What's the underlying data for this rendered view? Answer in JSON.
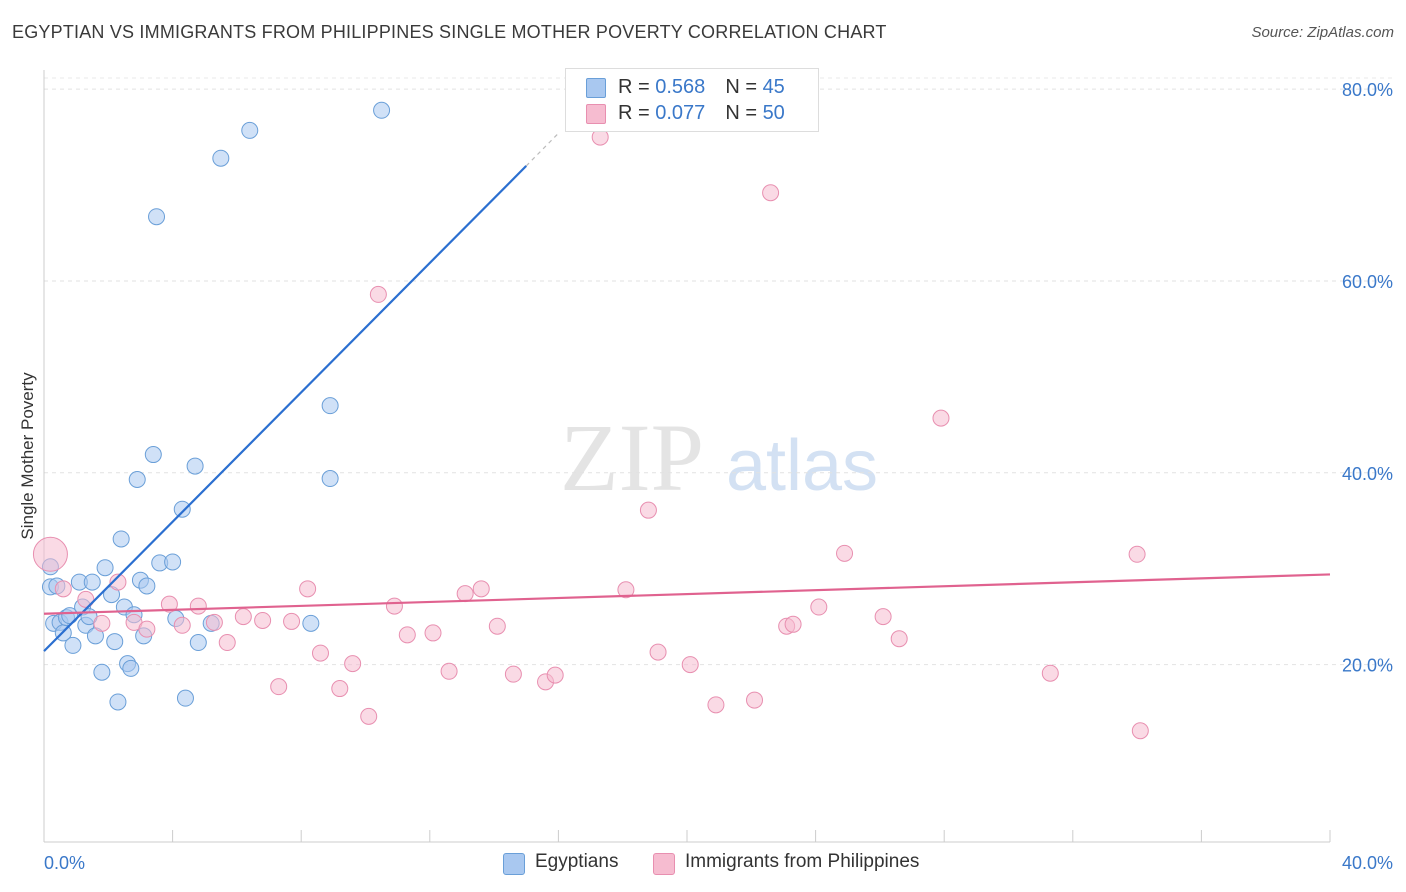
{
  "title": "EGYPTIAN VS IMMIGRANTS FROM PHILIPPINES SINGLE MOTHER POVERTY CORRELATION CHART",
  "source": "Source: ZipAtlas.com",
  "watermark": {
    "zip": "ZIP",
    "atlas": "atlas"
  },
  "legend_top": [
    {
      "r_label": "R = ",
      "r_value": "0.568",
      "n_label": "N = ",
      "n_value": "45",
      "color": "#a9c8f0"
    },
    {
      "r_label": "R = ",
      "r_value": "0.077",
      "n_label": "N = ",
      "n_value": "50",
      "color": "#f6bcd0"
    }
  ],
  "legend_bottom": [
    {
      "label": "Egyptians",
      "color": "#a9c8f0"
    },
    {
      "label": "Immigrants from Philippines",
      "color": "#f6bcd0"
    }
  ],
  "chart_data": {
    "type": "scatter",
    "ylabel": "Single Mother Poverty",
    "xlim": [
      0,
      40
    ],
    "ylim": [
      1.5,
      82
    ],
    "x_tick_labels": [
      "0.0%",
      "40.0%"
    ],
    "y_ticks": [
      20,
      40,
      60,
      80
    ],
    "y_tick_labels": [
      "20.0%",
      "40.0%",
      "60.0%",
      "80.0%"
    ],
    "grid": true,
    "series": [
      {
        "name": "Egyptians",
        "color": "#a9c8f0",
        "stroke": "#6a9fd8",
        "line_color": "#2b6fd0",
        "trend": {
          "x1": 0,
          "y1": 21.4,
          "x2": 15.0,
          "y2": 72.0,
          "dash_x2": 16.0,
          "dash_y2": 75.4
        },
        "points": [
          [
            0.2,
            30.2
          ],
          [
            0.2,
            28.1
          ],
          [
            0.3,
            24.3
          ],
          [
            0.4,
            28.2
          ],
          [
            0.5,
            24.4
          ],
          [
            0.6,
            23.3
          ],
          [
            0.7,
            24.9
          ],
          [
            0.8,
            25.1
          ],
          [
            0.9,
            22.0
          ],
          [
            1.1,
            28.6
          ],
          [
            1.2,
            26.0
          ],
          [
            1.3,
            24.1
          ],
          [
            1.4,
            25.0
          ],
          [
            1.5,
            28.6
          ],
          [
            1.6,
            23.0
          ],
          [
            1.8,
            19.2
          ],
          [
            1.9,
            30.1
          ],
          [
            2.1,
            27.3
          ],
          [
            2.2,
            22.4
          ],
          [
            2.3,
            16.1
          ],
          [
            2.4,
            33.1
          ],
          [
            2.5,
            26.0
          ],
          [
            2.6,
            20.1
          ],
          [
            2.7,
            19.6
          ],
          [
            2.8,
            25.2
          ],
          [
            2.9,
            39.3
          ],
          [
            3.0,
            28.8
          ],
          [
            3.1,
            23.0
          ],
          [
            3.2,
            28.2
          ],
          [
            3.4,
            41.9
          ],
          [
            3.5,
            66.7
          ],
          [
            3.6,
            30.6
          ],
          [
            4.0,
            30.7
          ],
          [
            4.1,
            24.8
          ],
          [
            4.3,
            36.2
          ],
          [
            4.4,
            16.5
          ],
          [
            4.7,
            40.7
          ],
          [
            4.8,
            22.3
          ],
          [
            5.2,
            24.3
          ],
          [
            5.5,
            72.8
          ],
          [
            6.4,
            75.7
          ],
          [
            8.3,
            24.3
          ],
          [
            8.9,
            47.0
          ],
          [
            8.9,
            39.4
          ],
          [
            10.5,
            77.8
          ]
        ]
      },
      {
        "name": "Immigrants from Philippines",
        "color": "#f6bcd0",
        "stroke": "#e88fb0",
        "line_color": "#e0628f",
        "trend": {
          "x1": 0,
          "y1": 25.3,
          "x2": 40,
          "y2": 29.4
        },
        "points": [
          [
            0.2,
            31.5
          ],
          [
            0.6,
            27.9
          ],
          [
            1.3,
            26.8
          ],
          [
            1.8,
            24.3
          ],
          [
            2.3,
            28.6
          ],
          [
            2.8,
            24.4
          ],
          [
            3.2,
            23.7
          ],
          [
            3.9,
            26.3
          ],
          [
            4.3,
            24.1
          ],
          [
            4.8,
            26.1
          ],
          [
            5.3,
            24.4
          ],
          [
            5.7,
            22.3
          ],
          [
            6.2,
            25.0
          ],
          [
            6.8,
            24.6
          ],
          [
            7.3,
            17.7
          ],
          [
            7.7,
            24.5
          ],
          [
            8.2,
            27.9
          ],
          [
            8.6,
            21.2
          ],
          [
            9.2,
            17.5
          ],
          [
            9.6,
            20.1
          ],
          [
            10.1,
            14.6
          ],
          [
            10.4,
            58.6
          ],
          [
            10.9,
            26.1
          ],
          [
            11.3,
            23.1
          ],
          [
            12.1,
            23.3
          ],
          [
            12.6,
            19.3
          ],
          [
            13.1,
            27.4
          ],
          [
            13.6,
            27.9
          ],
          [
            14.1,
            24.0
          ],
          [
            14.6,
            19.0
          ],
          [
            15.6,
            18.2
          ],
          [
            15.9,
            18.9
          ],
          [
            17.3,
            75.0
          ],
          [
            18.1,
            27.8
          ],
          [
            18.8,
            36.1
          ],
          [
            19.1,
            21.3
          ],
          [
            20.1,
            20.0
          ],
          [
            20.9,
            15.8
          ],
          [
            22.1,
            16.3
          ],
          [
            22.6,
            69.2
          ],
          [
            23.1,
            24.0
          ],
          [
            23.3,
            24.2
          ],
          [
            24.1,
            26.0
          ],
          [
            24.9,
            31.6
          ],
          [
            26.1,
            25.0
          ],
          [
            26.6,
            22.7
          ],
          [
            27.9,
            45.7
          ],
          [
            31.3,
            19.1
          ],
          [
            34.0,
            31.5
          ],
          [
            34.1,
            13.1
          ]
        ]
      }
    ]
  }
}
